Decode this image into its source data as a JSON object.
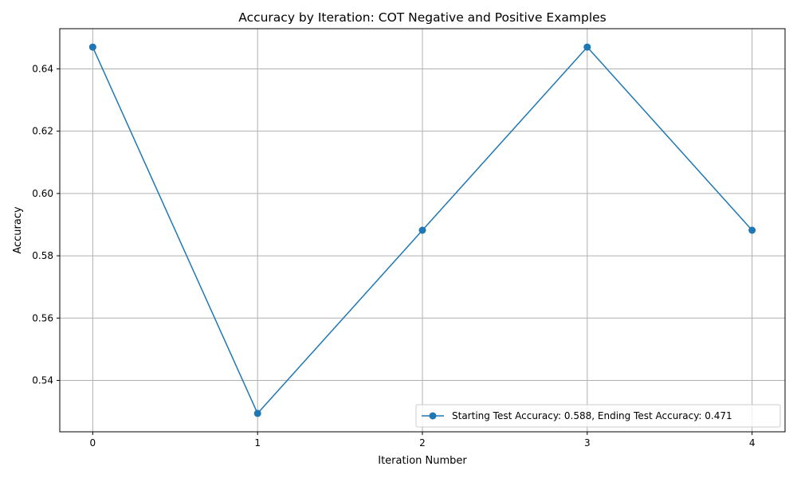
{
  "chart_data": {
    "type": "line",
    "title": "Accuracy by Iteration: COT Negative and Positive Examples",
    "xlabel": "Iteration Number",
    "ylabel": "Accuracy",
    "x": [
      0,
      1,
      2,
      3,
      4
    ],
    "x_ticks": [
      "0",
      "1",
      "2",
      "3",
      "4"
    ],
    "y_ticks": [
      "0.54",
      "0.56",
      "0.58",
      "0.60",
      "0.62",
      "0.64"
    ],
    "xlim": [
      -0.2,
      4.2
    ],
    "ylim": [
      0.5235,
      0.6529
    ],
    "grid": true,
    "legend_position": "lower-right",
    "series": [
      {
        "name": "Starting Test Accuracy: 0.588, Ending Test Accuracy: 0.471",
        "color": "#1f77b4",
        "marker": "circle",
        "values": [
          0.647,
          0.5294,
          0.5882,
          0.647,
          0.5882
        ]
      }
    ]
  }
}
